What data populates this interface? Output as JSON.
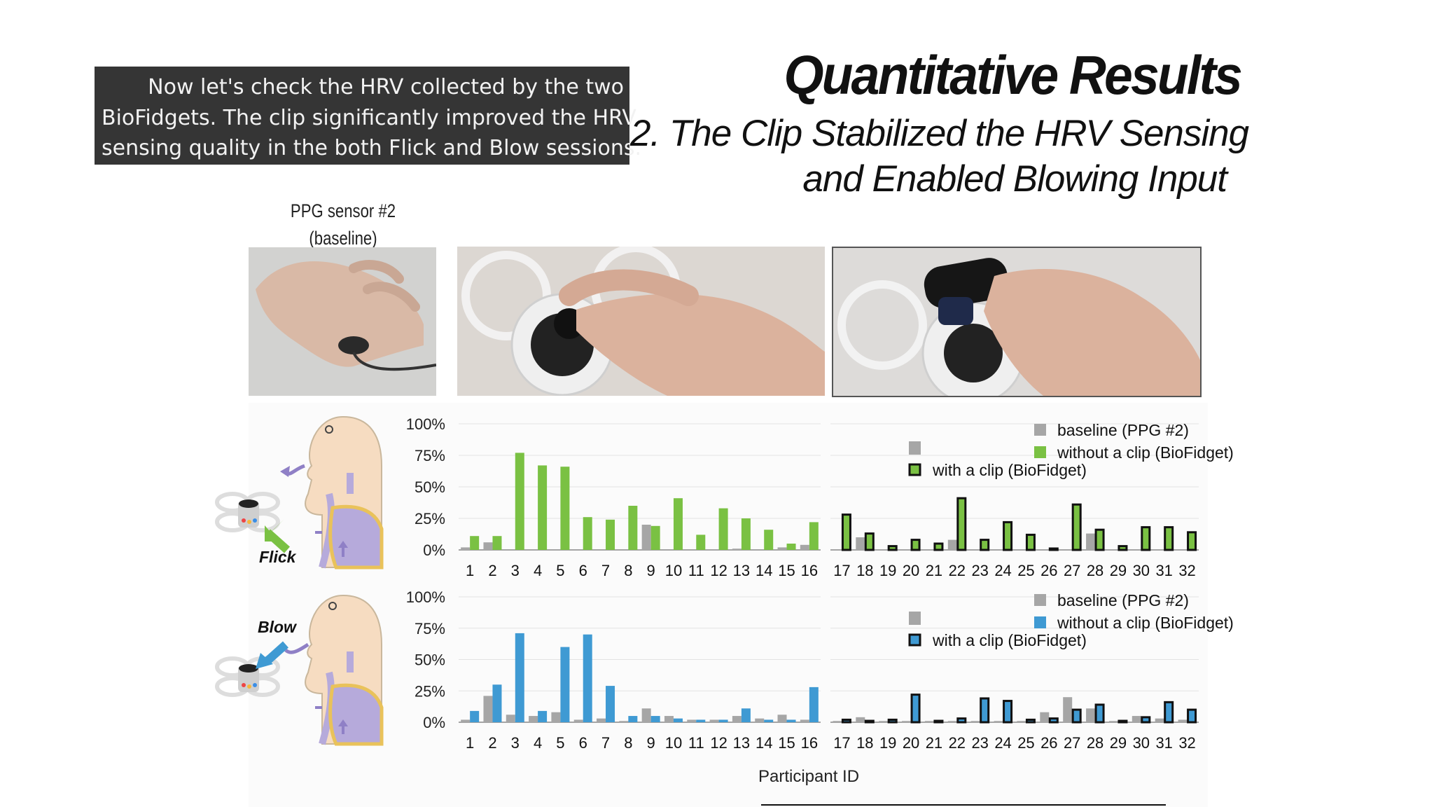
{
  "caption": {
    "lines": [
      "Now let's check the HRV collected by the two",
      "BioFidgets. The clip significantly improved the HRV",
      "sensing quality in the both Flick and Blow sessions."
    ]
  },
  "slide": {
    "title": "Quantitative Results",
    "subtitle_lines": [
      "2. The Clip Stabilized the HRV Sensing",
      "and Enabled Blowing Input"
    ]
  },
  "photos": {
    "label_lines": [
      "PPG sensor #2",
      "(baseline)"
    ],
    "items": [
      "hand-with-ppg-sensor",
      "hand-holding-biofidget",
      "hand-holding-biofidget-with-clip"
    ]
  },
  "illustrations": {
    "flick_label": "Flick",
    "blow_label": "Blow"
  },
  "colors": {
    "baseline": "#a6a6a6",
    "flick": "#7ac143",
    "blow": "#3f9ad3",
    "outline": "#111111"
  },
  "x_axis_title": "Participant ID",
  "chart_data": [
    {
      "type": "bar",
      "title": "",
      "xlabel": "Participant ID",
      "ylabel": "",
      "ylim": [
        0,
        100
      ],
      "yticks": [
        "0%",
        "25%",
        "50%",
        "75%",
        "100%"
      ],
      "categories": [
        "1",
        "2",
        "3",
        "4",
        "5",
        "6",
        "7",
        "8",
        "9",
        "10",
        "11",
        "12",
        "13",
        "14",
        "15",
        "16",
        "17",
        "18",
        "19",
        "20",
        "21",
        "22",
        "23",
        "24",
        "25",
        "26",
        "27",
        "28",
        "29",
        "30",
        "31",
        "32"
      ],
      "legend": {
        "placement": "top-right",
        "entries": [
          "baseline (PPG #2)",
          "without a clip (BioFidget)",
          "with a clip (BioFidget)"
        ]
      },
      "series": [
        {
          "name": "baseline (PPG #2)",
          "values": [
            2,
            6,
            0,
            0,
            0,
            0,
            0,
            0,
            20,
            0,
            0,
            0,
            1,
            0,
            2,
            4,
            0,
            10,
            0,
            0,
            0,
            8,
            0,
            0,
            0,
            0,
            0,
            13,
            0,
            0,
            0,
            0
          ]
        },
        {
          "name": "without a clip (BioFidget)",
          "values": [
            11,
            11,
            77,
            67,
            66,
            26,
            24,
            35,
            19,
            41,
            12,
            33,
            25,
            16,
            5,
            22,
            null,
            null,
            null,
            null,
            null,
            null,
            null,
            null,
            null,
            null,
            null,
            null,
            null,
            null,
            null,
            null
          ]
        },
        {
          "name": "with a clip (BioFidget)",
          "values": [
            null,
            null,
            null,
            null,
            null,
            null,
            null,
            null,
            null,
            null,
            null,
            null,
            null,
            null,
            null,
            null,
            28,
            13,
            3,
            8,
            5,
            41,
            8,
            22,
            12,
            0,
            36,
            16,
            3,
            18,
            18,
            14
          ]
        }
      ]
    },
    {
      "type": "bar",
      "title": "",
      "xlabel": "Participant ID",
      "ylabel": "",
      "ylim": [
        0,
        100
      ],
      "yticks": [
        "0%",
        "25%",
        "50%",
        "75%",
        "100%"
      ],
      "categories": [
        "1",
        "2",
        "3",
        "4",
        "5",
        "6",
        "7",
        "8",
        "9",
        "10",
        "11",
        "12",
        "13",
        "14",
        "15",
        "16",
        "17",
        "18",
        "19",
        "20",
        "21",
        "22",
        "23",
        "24",
        "25",
        "26",
        "27",
        "28",
        "29",
        "30",
        "31",
        "32"
      ],
      "legend": {
        "placement": "top-right",
        "entries": [
          "baseline (PPG #2)",
          "without a clip (BioFidget)",
          "with a clip (BioFidget)"
        ]
      },
      "series": [
        {
          "name": "baseline (PPG #2)",
          "values": [
            2,
            21,
            6,
            5,
            8,
            2,
            3,
            1,
            11,
            5,
            2,
            2,
            5,
            3,
            6,
            2,
            1,
            4,
            1,
            1,
            1,
            1,
            1,
            1,
            1,
            8,
            20,
            11,
            1,
            5,
            3,
            2
          ]
        },
        {
          "name": "without a clip (BioFidget)",
          "values": [
            9,
            30,
            71,
            9,
            60,
            70,
            29,
            5,
            5,
            3,
            2,
            2,
            11,
            2,
            2,
            28,
            null,
            null,
            null,
            null,
            null,
            null,
            null,
            null,
            null,
            null,
            null,
            null,
            null,
            null,
            null,
            null
          ]
        },
        {
          "name": "with a clip (BioFidget)",
          "values": [
            null,
            null,
            null,
            null,
            null,
            null,
            null,
            null,
            null,
            null,
            null,
            null,
            null,
            null,
            null,
            null,
            2,
            1,
            2,
            22,
            0,
            3,
            19,
            17,
            2,
            3,
            10,
            14,
            1,
            4,
            16,
            10
          ]
        }
      ]
    }
  ]
}
